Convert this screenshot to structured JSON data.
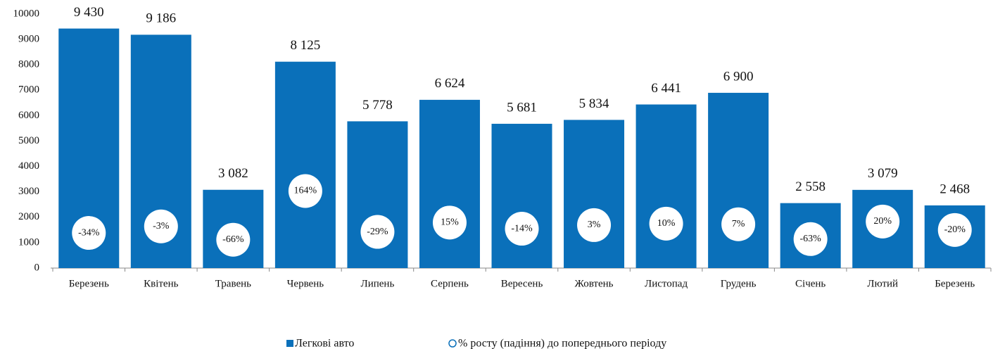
{
  "chart_data": {
    "type": "bar",
    "categories": [
      "Березень",
      "Квітень",
      "Травень",
      "Червень",
      "Липень",
      "Серпень",
      "Вересень",
      "Жовтень",
      "Листопад",
      "Грудень",
      "Січень",
      "Лютий",
      "Березень"
    ],
    "series": [
      {
        "name": "Легкові авто",
        "color": "#0a70ba",
        "values": [
          9430,
          9186,
          3082,
          8125,
          5778,
          6624,
          5681,
          5834,
          6441,
          6900,
          2558,
          3079,
          2468
        ],
        "value_labels": [
          "9 430",
          "9 186",
          "3 082",
          "8 125",
          "5 778",
          "6 624",
          "5 681",
          "5 834",
          "6 441",
          "6 900",
          "2 558",
          "3 079",
          "2 468"
        ]
      },
      {
        "name": "% росту (падіння) до попереднього періоду",
        "color": "#0a70ba",
        "axis": "y2",
        "type": "scatter",
        "values": [
          -34,
          -3,
          -66,
          164,
          -29,
          15,
          -14,
          3,
          10,
          7,
          -63,
          20,
          -20
        ],
        "value_labels": [
          "-34%",
          "-3%",
          "-66%",
          "164%",
          "-29%",
          "15%",
          "-14%",
          "3%",
          "10%",
          "7%",
          "-63%",
          "20%",
          "-20%"
        ]
      }
    ],
    "ylim": [
      0,
      10000
    ],
    "yticks": [
      0,
      1000,
      2000,
      3000,
      4000,
      5000,
      6000,
      7000,
      8000,
      9000,
      10000
    ],
    "y2lim": [
      -200,
      1000
    ],
    "legend": "bottom"
  }
}
